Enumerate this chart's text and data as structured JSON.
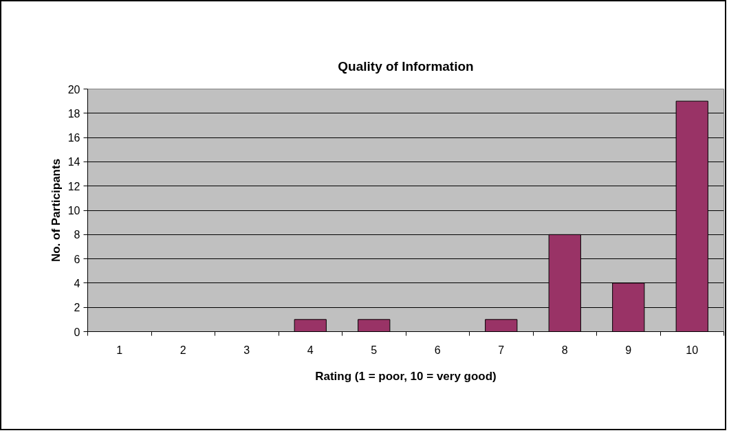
{
  "chart_data": {
    "type": "bar",
    "title": "Quality of Information",
    "xlabel": "Rating (1 = poor, 10 = very good)",
    "ylabel": "No. of Participants",
    "categories": [
      "1",
      "2",
      "3",
      "4",
      "5",
      "6",
      "7",
      "8",
      "9",
      "10"
    ],
    "values": [
      0,
      0,
      0,
      1,
      1,
      0,
      1,
      8,
      4,
      19
    ],
    "color": "#993366",
    "ylim": [
      0,
      20
    ],
    "yticks": [
      0,
      2,
      4,
      6,
      8,
      10,
      12,
      14,
      16,
      18,
      20
    ],
    "grid": "y"
  }
}
